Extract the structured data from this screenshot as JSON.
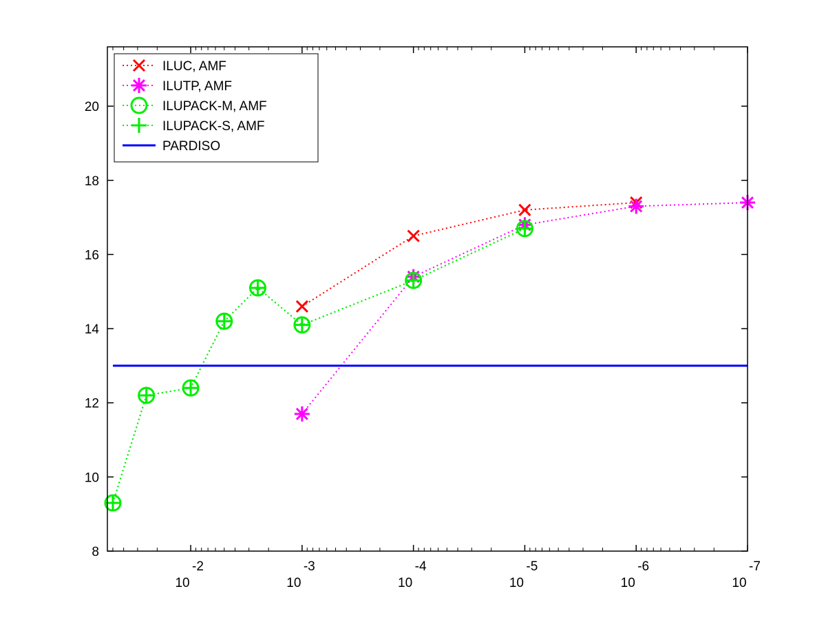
{
  "chart_data": {
    "type": "line",
    "title": "",
    "xlabel": "",
    "ylabel": "",
    "x_scale": "log",
    "x_reversed": true,
    "xlim": [
      0.056,
      1e-07
    ],
    "ylim": [
      8,
      21.6
    ],
    "y_ticks": [
      8,
      10,
      12,
      14,
      16,
      18,
      20
    ],
    "y_tick_labels": [
      "8",
      "10",
      "12",
      "14",
      "16",
      "18",
      "20"
    ],
    "x_ticks": [
      0.01,
      0.001,
      0.0001,
      1e-05,
      1e-06,
      1e-07
    ],
    "x_tick_labels": [
      {
        "base": "10",
        "exp": "-2"
      },
      {
        "base": "10",
        "exp": "-3"
      },
      {
        "base": "10",
        "exp": "-4"
      },
      {
        "base": "10",
        "exp": "-5"
      },
      {
        "base": "10",
        "exp": "-6"
      },
      {
        "base": "10",
        "exp": "-7"
      }
    ],
    "grid": false,
    "legend_position": "top-left",
    "series": [
      {
        "name": "ILUC, AMF",
        "color": "#ff0000",
        "line_style": "dotted",
        "marker": "x",
        "x": [
          0.001,
          0.0001,
          1e-05,
          1e-06
        ],
        "y": [
          14.6,
          16.5,
          17.2,
          17.4
        ]
      },
      {
        "name": "ILUTP, AMF",
        "color": "#ff00ff",
        "line_style": "dotted",
        "marker": "asterisk",
        "x": [
          0.001,
          0.0001,
          1e-05,
          1e-06,
          1e-07
        ],
        "y": [
          11.7,
          15.4,
          16.8,
          17.3,
          17.4
        ]
      },
      {
        "name": "ILUPACK-M, AMF",
        "color": "#00ee00",
        "line_style": "dotted",
        "marker": "circle",
        "x": [
          0.05,
          0.025,
          0.01,
          0.005,
          0.0025,
          0.001,
          0.0001,
          1e-05
        ],
        "y": [
          9.3,
          12.2,
          12.4,
          14.2,
          15.1,
          14.1,
          15.3,
          16.7
        ]
      },
      {
        "name": "ILUPACK-S, AMF",
        "color": "#00ee00",
        "line_style": "dotted",
        "marker": "plus",
        "x": [
          0.05,
          0.025,
          0.01,
          0.005,
          0.0025,
          0.001,
          0.0001,
          1e-05
        ],
        "y": [
          9.3,
          12.2,
          12.4,
          14.2,
          15.1,
          14.1,
          15.3,
          16.7
        ]
      },
      {
        "name": "PARDISO",
        "color": "#0000ff",
        "line_style": "solid",
        "marker": "none",
        "x": [
          0.05,
          1e-07
        ],
        "y": [
          13,
          13
        ]
      }
    ]
  }
}
